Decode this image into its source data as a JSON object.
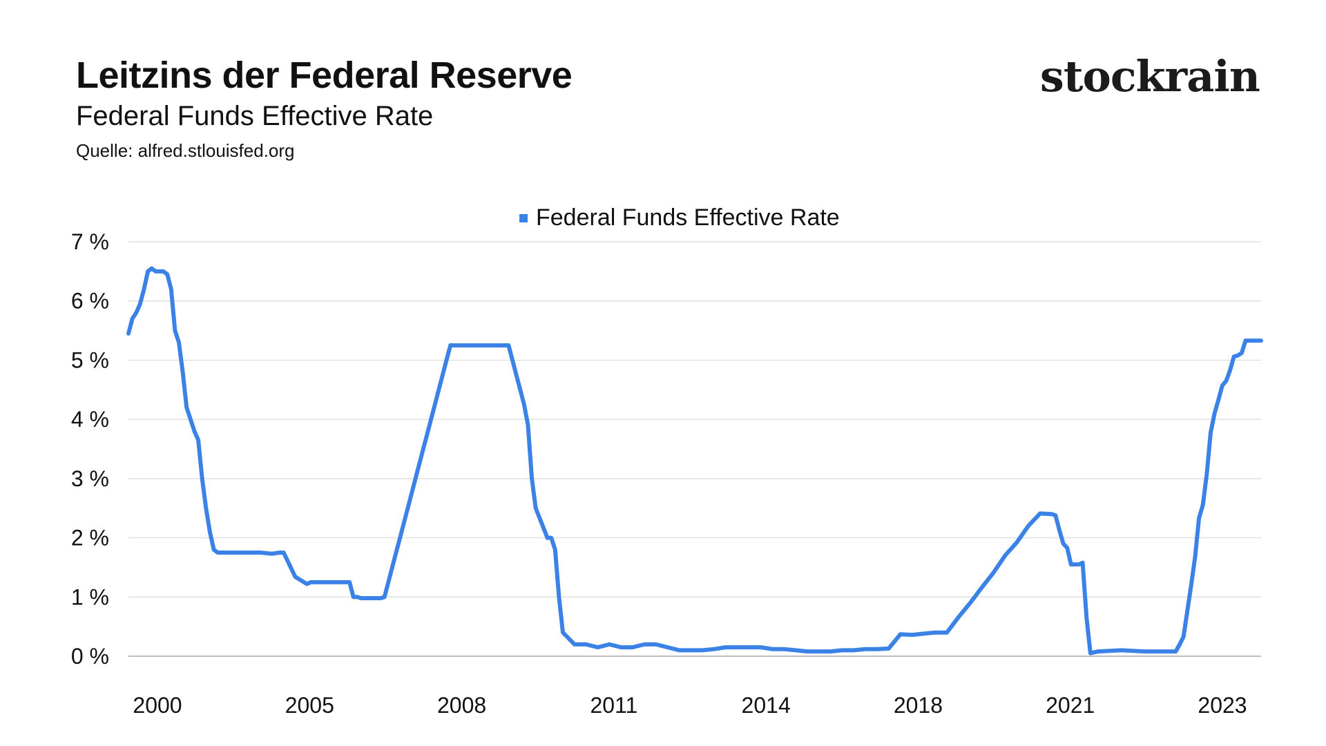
{
  "header": {
    "title": "Leitzins der Federal Reserve",
    "subtitle": "Federal Funds Effective Rate",
    "source": "Quelle: alfred.stlouisfed.org"
  },
  "brand": {
    "name": "stockrain"
  },
  "colors": {
    "line": "#3b82e6",
    "grid": "#d9d9d9",
    "axis": "#bdbdbd",
    "text": "#111111"
  },
  "chart_data": {
    "type": "line",
    "title": "Leitzins der Federal Reserve",
    "subtitle": "Federal Funds Effective Rate",
    "legend": {
      "position": "top-center",
      "entries": [
        "Federal Funds Effective Rate"
      ]
    },
    "grid": true,
    "ylim": [
      0,
      7
    ],
    "y_ticks": [
      0,
      1,
      2,
      3,
      4,
      5,
      6,
      7
    ],
    "y_tick_labels": [
      "0 %",
      "1 %",
      "2 %",
      "3 %",
      "4 %",
      "5 %",
      "6 %",
      "7 %"
    ],
    "x_tick_labels": [
      "2000",
      "2005",
      "2008",
      "2011",
      "2014",
      "2018",
      "2021",
      "2023"
    ],
    "series": [
      {
        "name": "Federal Funds Effective Rate",
        "x": [
          "1999-08",
          "1999-09",
          "1999-10",
          "1999-11",
          "1999-12",
          "2000-01",
          "2000-02",
          "2000-03",
          "2000-04",
          "2000-05",
          "2000-06",
          "2000-07",
          "2000-08",
          "2000-09",
          "2000-10",
          "2000-11",
          "2000-12",
          "2001-01",
          "2001-02",
          "2001-03",
          "2001-04",
          "2001-05",
          "2001-06",
          "2001-07",
          "2001-08",
          "2001-09",
          "2001-10",
          "2001-11",
          "2001-12",
          "2002-01",
          "2002-03",
          "2002-06",
          "2002-09",
          "2002-11",
          "2002-12",
          "2003-03",
          "2003-06",
          "2003-07",
          "2003-09",
          "2003-12",
          "2004-03",
          "2004-05",
          "2004-06",
          "2004-07",
          "2004-08",
          "2004-09",
          "2004-10",
          "2004-11",
          "2004-12",
          "2005-01",
          "2005-02",
          "2005-03",
          "2005-04",
          "2005-05",
          "2005-06",
          "2005-07",
          "2005-08",
          "2005-09",
          "2005-10",
          "2005-11",
          "2005-12",
          "2006-01",
          "2006-02",
          "2006-03",
          "2006-04",
          "2006-05",
          "2006-06",
          "2006-07",
          "2006-12",
          "2007-03",
          "2007-06",
          "2007-08",
          "2007-09",
          "2007-10",
          "2007-11",
          "2007-12",
          "2008-01",
          "2008-02",
          "2008-03",
          "2008-04",
          "2008-05",
          "2008-08",
          "2008-09",
          "2008-10",
          "2008-11",
          "2008-12",
          "2009-03",
          "2009-06",
          "2009-09",
          "2009-12",
          "2010-03",
          "2010-06",
          "2010-09",
          "2010-12",
          "2011-03",
          "2011-06",
          "2011-09",
          "2011-12",
          "2012-03",
          "2012-06",
          "2012-09",
          "2012-12",
          "2013-03",
          "2013-06",
          "2013-09",
          "2013-12",
          "2014-03",
          "2014-06",
          "2014-09",
          "2014-12",
          "2015-03",
          "2015-06",
          "2015-09",
          "2015-12",
          "2016-03",
          "2016-06",
          "2016-09",
          "2016-12",
          "2017-03",
          "2017-06",
          "2017-09",
          "2017-12",
          "2018-03",
          "2018-06",
          "2018-09",
          "2018-12",
          "2019-03",
          "2019-06",
          "2019-07",
          "2019-08",
          "2019-09",
          "2019-10",
          "2019-11",
          "2019-12",
          "2020-01",
          "2020-02",
          "2020-03",
          "2020-04",
          "2020-06",
          "2020-12",
          "2021-06",
          "2021-12",
          "2022-02",
          "2022-03",
          "2022-04",
          "2022-05",
          "2022-06",
          "2022-07",
          "2022-08",
          "2022-09",
          "2022-10",
          "2022-11",
          "2022-12",
          "2023-01",
          "2023-02",
          "2023-03",
          "2023-04",
          "2023-05",
          "2023-06",
          "2023-07",
          "2023-08",
          "2023-10",
          "2023-12"
        ],
        "values": [
          5.45,
          5.7,
          5.8,
          5.95,
          6.2,
          6.5,
          6.55,
          6.5,
          6.5,
          6.5,
          6.45,
          6.2,
          5.5,
          5.3,
          4.8,
          4.2,
          4.0,
          3.8,
          3.65,
          3.0,
          2.5,
          2.1,
          1.8,
          1.75,
          1.75,
          1.75,
          1.75,
          1.75,
          1.75,
          1.75,
          1.75,
          1.75,
          1.73,
          1.75,
          1.75,
          1.34,
          1.22,
          1.25,
          1.25,
          1.25,
          1.25,
          1.25,
          1.0,
          1.0,
          0.98,
          0.98,
          0.98,
          0.98,
          0.98,
          0.98,
          1.0,
          1.25,
          1.5,
          1.75,
          2.0,
          2.25,
          2.5,
          2.75,
          3.0,
          3.25,
          3.5,
          3.75,
          4.0,
          4.25,
          4.5,
          4.75,
          5.0,
          5.25,
          5.25,
          5.25,
          5.25,
          5.25,
          5.25,
          5.25,
          5.0,
          4.75,
          4.5,
          4.25,
          3.9,
          3.0,
          2.5,
          2.0,
          2.0,
          1.8,
          1.0,
          0.4,
          0.2,
          0.2,
          0.15,
          0.2,
          0.15,
          0.15,
          0.2,
          0.2,
          0.15,
          0.1,
          0.1,
          0.1,
          0.12,
          0.15,
          0.15,
          0.15,
          0.15,
          0.12,
          0.12,
          0.1,
          0.08,
          0.08,
          0.08,
          0.1,
          0.1,
          0.12,
          0.12,
          0.13,
          0.37,
          0.36,
          0.38,
          0.4,
          0.4,
          0.66,
          0.9,
          1.16,
          1.41,
          1.7,
          1.92,
          2.2,
          2.41,
          2.4,
          2.38,
          2.13,
          1.9,
          1.83,
          1.55,
          1.55,
          1.55,
          1.58,
          0.65,
          0.05,
          0.08,
          0.1,
          0.08,
          0.08,
          0.08,
          0.2,
          0.33,
          0.77,
          1.21,
          1.68,
          2.33,
          2.56,
          3.08,
          3.78,
          4.1,
          4.33,
          4.57,
          4.65,
          4.83,
          5.06,
          5.08,
          5.12,
          5.33,
          5.33,
          5.33
        ]
      }
    ]
  }
}
